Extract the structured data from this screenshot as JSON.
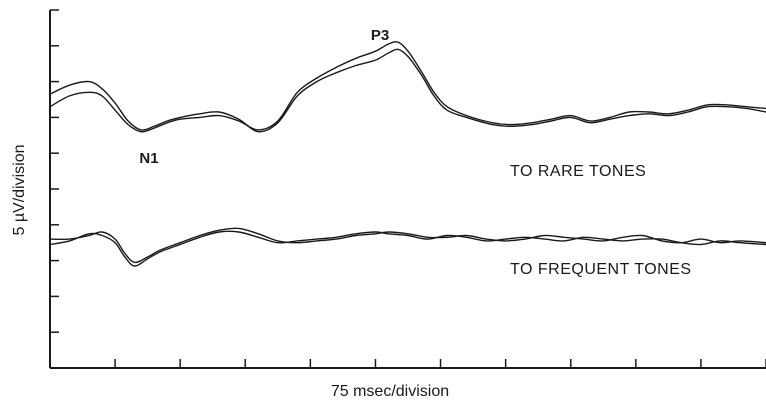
{
  "chart_data": {
    "type": "line",
    "title": "",
    "xlabel": "75 msec/division",
    "ylabel": "5 µV/division",
    "xlim": [
      0,
      11
    ],
    "ylim": [
      0,
      10
    ],
    "x_divisions": 11,
    "y_divisions": 10,
    "grid": false,
    "annotations": [
      {
        "text": "P3",
        "x": 5.1,
        "y": 9.3
      },
      {
        "text": "N1",
        "x": 1.4,
        "y": 5.5
      }
    ],
    "groups": [
      {
        "label": "TO RARE TONES",
        "series": [
          {
            "x": [
              0,
              0.3,
              0.6,
              0.8,
              1.0,
              1.2,
              1.4,
              1.6,
              1.8,
              2.0,
              2.3,
              2.6,
              2.9,
              3.2,
              3.5,
              3.8,
              4.1,
              4.4,
              4.7,
              5.0,
              5.2,
              5.35,
              5.5,
              5.7,
              5.9,
              6.1,
              6.4,
              6.8,
              7.1,
              7.4,
              7.7,
              8.0,
              8.3,
              8.6,
              8.9,
              9.2,
              9.5,
              9.8,
              10.1,
              10.4,
              10.7,
              11.0
            ],
            "y": [
              7.65,
              7.9,
              8.0,
              7.8,
              7.4,
              6.9,
              6.65,
              6.75,
              6.9,
              7.0,
              7.1,
              7.15,
              6.95,
              6.6,
              6.85,
              7.6,
              8.0,
              8.25,
              8.45,
              8.6,
              8.8,
              8.9,
              8.7,
              8.2,
              7.6,
              7.2,
              7.0,
              6.8,
              6.75,
              6.8,
              6.9,
              7.0,
              6.85,
              6.95,
              7.05,
              7.1,
              7.05,
              7.15,
              7.3,
              7.3,
              7.25,
              7.15
            ]
          },
          {
            "x": [
              0,
              0.3,
              0.6,
              0.8,
              1.0,
              1.2,
              1.4,
              1.6,
              1.8,
              2.0,
              2.3,
              2.6,
              2.9,
              3.2,
              3.5,
              3.8,
              4.1,
              4.4,
              4.7,
              5.0,
              5.2,
              5.35,
              5.5,
              5.7,
              5.9,
              6.1,
              6.4,
              6.8,
              7.1,
              7.4,
              7.7,
              8.0,
              8.3,
              8.6,
              8.9,
              9.2,
              9.5,
              9.8,
              10.1,
              10.4,
              10.7,
              11.0
            ],
            "y": [
              7.3,
              7.6,
              7.7,
              7.6,
              7.2,
              6.8,
              6.6,
              6.7,
              6.85,
              6.95,
              7.0,
              7.05,
              6.9,
              6.65,
              6.9,
              7.7,
              8.1,
              8.4,
              8.65,
              8.85,
              9.05,
              9.1,
              8.85,
              8.3,
              7.7,
              7.3,
              7.05,
              6.85,
              6.8,
              6.85,
              6.95,
              7.05,
              6.9,
              7.0,
              7.15,
              7.15,
              7.1,
              7.2,
              7.35,
              7.35,
              7.3,
              7.25
            ]
          }
        ]
      },
      {
        "label": "TO FREQUENT TONES",
        "series": [
          {
            "x": [
              0,
              0.3,
              0.6,
              0.8,
              1.0,
              1.15,
              1.3,
              1.5,
              1.7,
              2.0,
              2.3,
              2.6,
              2.9,
              3.2,
              3.5,
              3.8,
              4.1,
              4.4,
              4.7,
              5.0,
              5.2,
              5.5,
              5.8,
              6.1,
              6.4,
              6.7,
              7.0,
              7.3,
              7.6,
              7.9,
              8.2,
              8.5,
              8.8,
              9.1,
              9.4,
              9.7,
              10.0,
              10.3,
              10.6,
              11.0
            ],
            "y": [
              3.6,
              3.6,
              3.7,
              3.8,
              3.6,
              3.2,
              2.95,
              3.1,
              3.3,
              3.5,
              3.7,
              3.85,
              3.9,
              3.75,
              3.55,
              3.5,
              3.55,
              3.6,
              3.7,
              3.75,
              3.8,
              3.75,
              3.65,
              3.65,
              3.7,
              3.6,
              3.55,
              3.6,
              3.7,
              3.65,
              3.6,
              3.55,
              3.65,
              3.7,
              3.55,
              3.5,
              3.6,
              3.5,
              3.55,
              3.5
            ]
          },
          {
            "x": [
              0,
              0.3,
              0.6,
              0.8,
              1.0,
              1.15,
              1.3,
              1.5,
              1.7,
              2.0,
              2.3,
              2.6,
              2.9,
              3.2,
              3.5,
              3.8,
              4.1,
              4.4,
              4.7,
              5.0,
              5.2,
              5.5,
              5.8,
              6.1,
              6.4,
              6.7,
              7.0,
              7.3,
              7.6,
              7.9,
              8.2,
              8.5,
              8.8,
              9.1,
              9.4,
              9.7,
              10.0,
              10.3,
              10.6,
              11.0
            ],
            "y": [
              3.45,
              3.55,
              3.75,
              3.7,
              3.5,
              3.1,
              2.85,
              3.05,
              3.25,
              3.45,
              3.65,
              3.8,
              3.8,
              3.65,
              3.5,
              3.55,
              3.6,
              3.65,
              3.75,
              3.8,
              3.75,
              3.7,
              3.6,
              3.7,
              3.65,
              3.55,
              3.6,
              3.65,
              3.6,
              3.55,
              3.65,
              3.6,
              3.55,
              3.6,
              3.6,
              3.5,
              3.45,
              3.55,
              3.5,
              3.45
            ]
          }
        ]
      }
    ]
  }
}
